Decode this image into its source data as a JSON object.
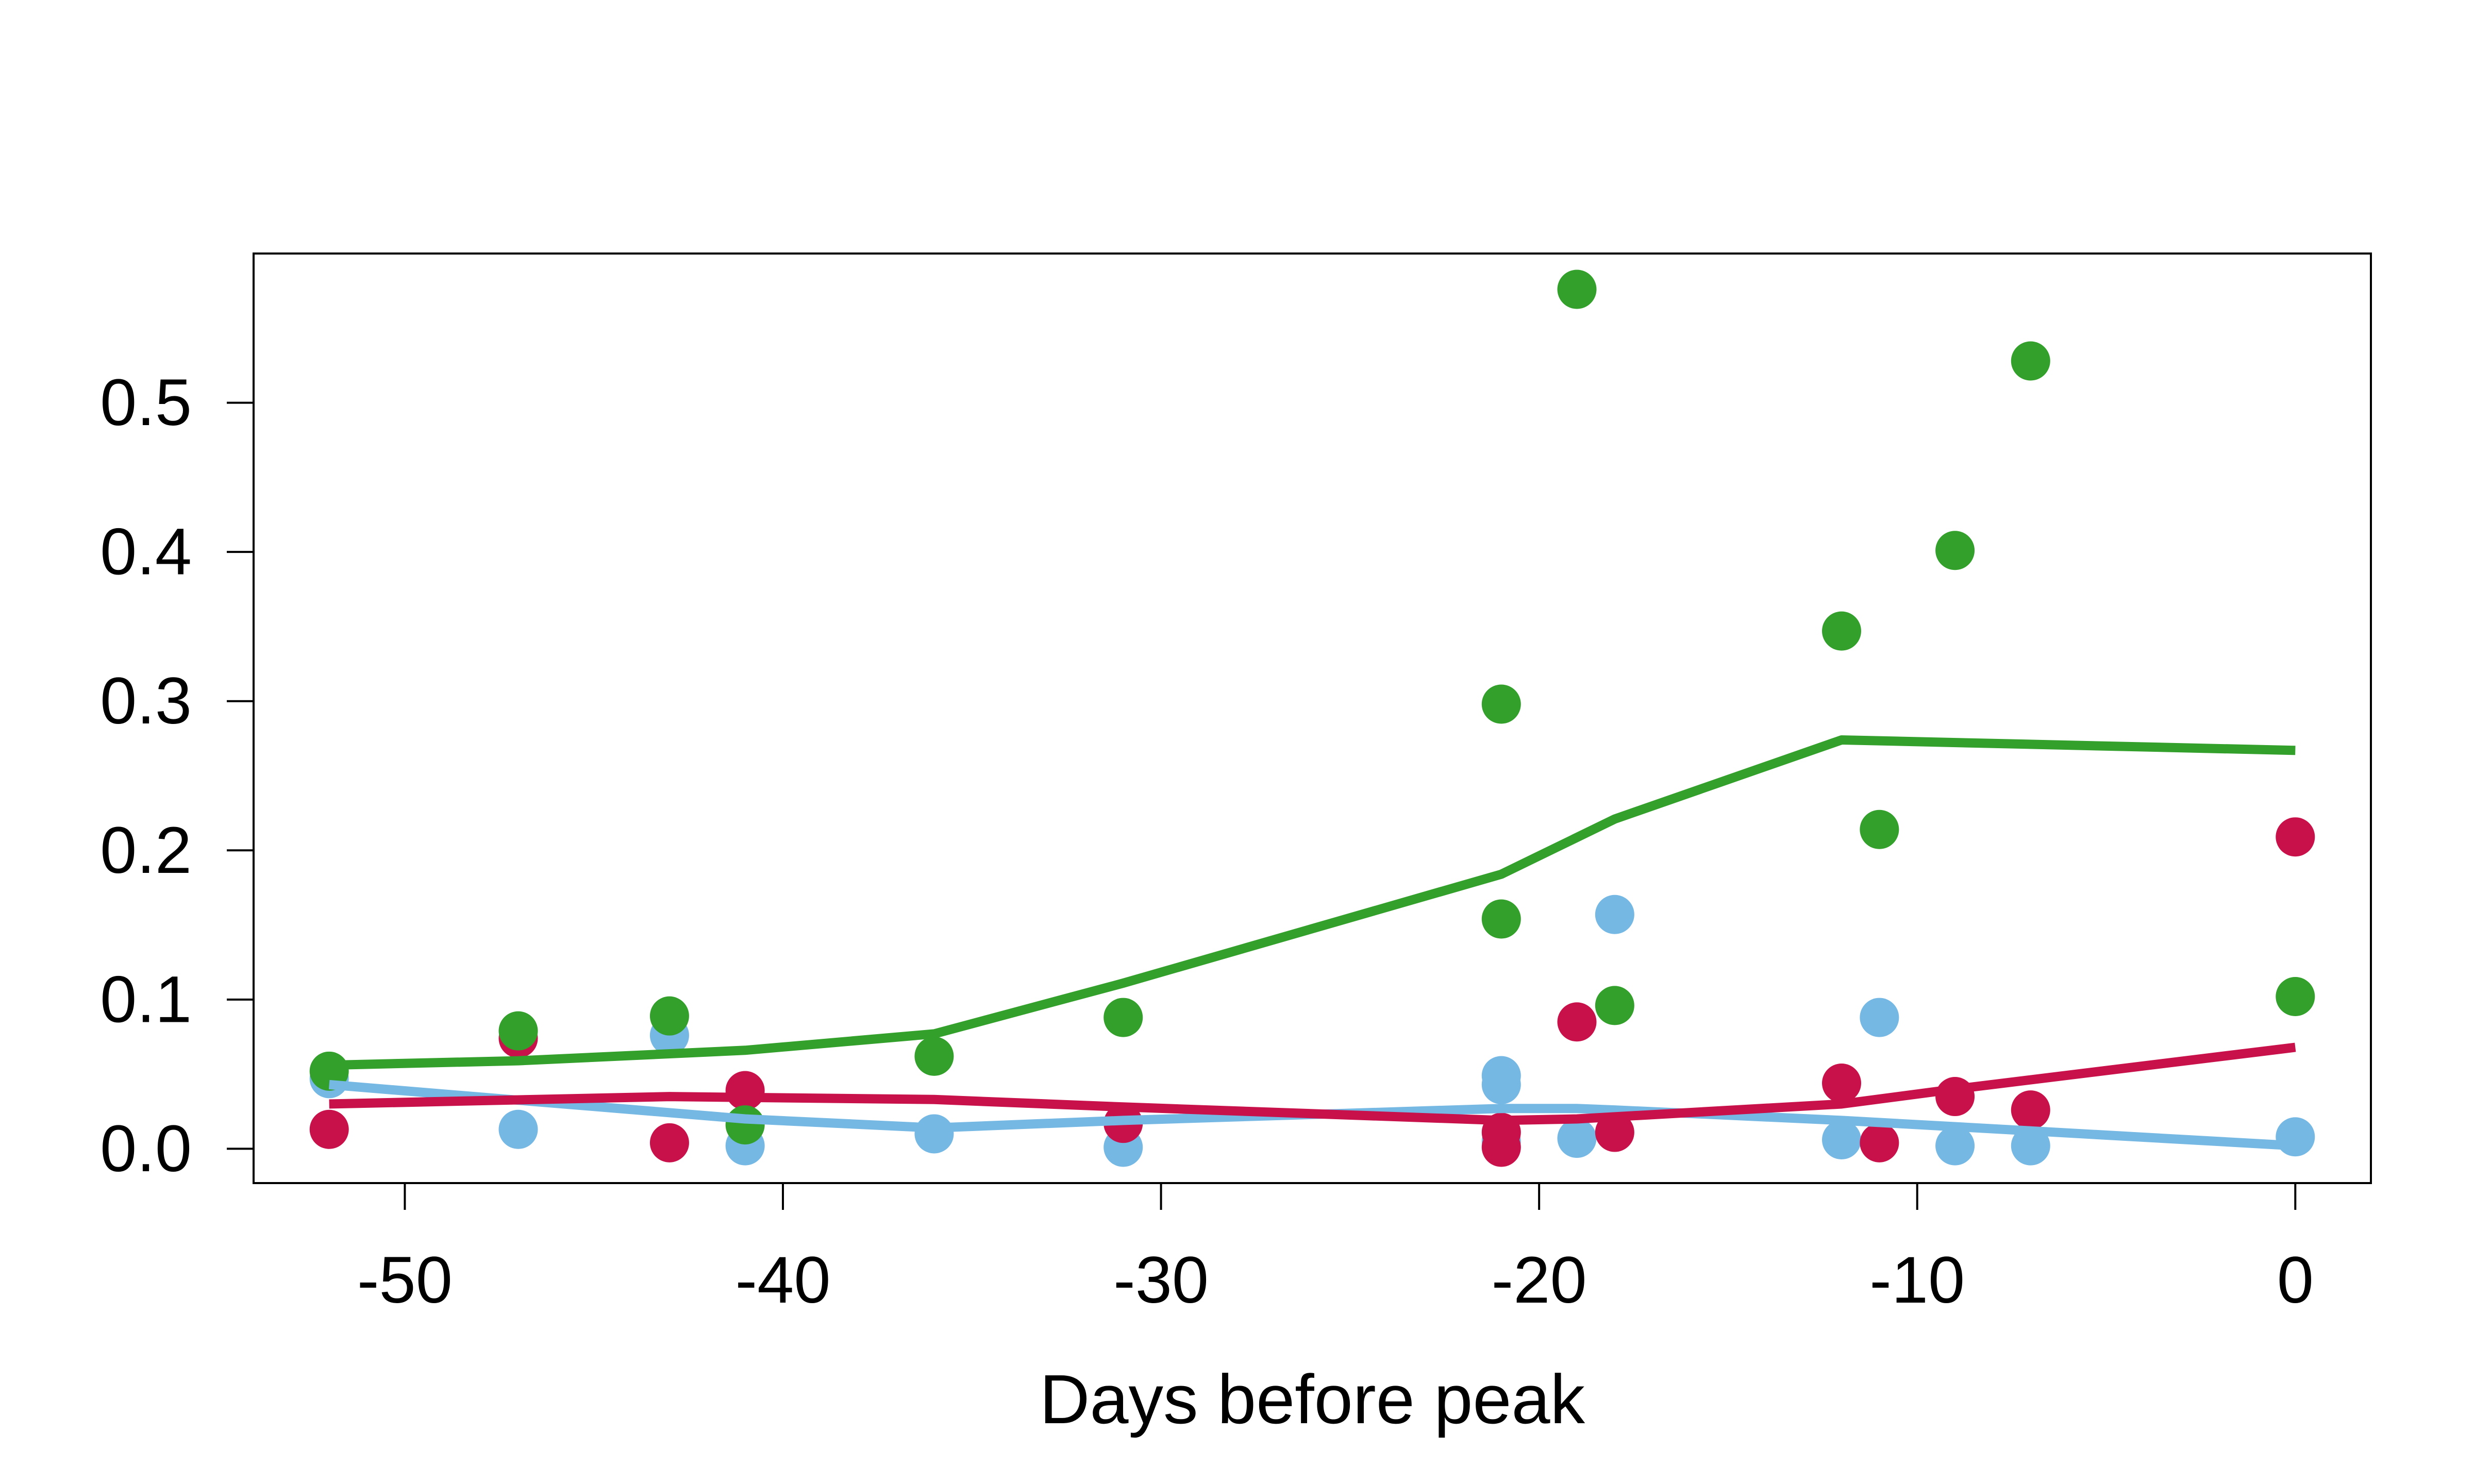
{
  "chart_data": {
    "type": "scatter",
    "xlabel": "Days before peak",
    "ylabel": "",
    "xlim": [
      -54,
      2
    ],
    "ylim": [
      -0.023,
      0.6
    ],
    "xticks": [
      -50,
      -40,
      -30,
      -20,
      -10,
      0
    ],
    "yticks": [
      0.0,
      0.1,
      0.2,
      0.3,
      0.4,
      0.5
    ],
    "xtick_labels": [
      "-50",
      "-40",
      "-30",
      "-20",
      "-10",
      "0"
    ],
    "ytick_labels": [
      "0.0",
      "0.1",
      "0.2",
      "0.3",
      "0.4",
      "0.5"
    ],
    "grid": false,
    "series": [
      {
        "color": "#75b8e4",
        "points": [
          {
            "x": -52,
            "y": 0.047
          },
          {
            "x": -47,
            "y": 0.013
          },
          {
            "x": -43,
            "y": 0.076
          },
          {
            "x": -41,
            "y": 0.002
          },
          {
            "x": -36,
            "y": 0.01
          },
          {
            "x": -31,
            "y": 0.001
          },
          {
            "x": -21,
            "y": 0.049
          },
          {
            "x": -21,
            "y": 0.043
          },
          {
            "x": -21,
            "y": 0.005
          },
          {
            "x": -19,
            "y": 0.007
          },
          {
            "x": -18,
            "y": 0.157
          },
          {
            "x": -12,
            "y": 0.006
          },
          {
            "x": -11,
            "y": 0.088
          },
          {
            "x": -9,
            "y": 0.002
          },
          {
            "x": -7,
            "y": 0.002
          },
          {
            "x": 0,
            "y": 0.008
          }
        ],
        "trend": [
          {
            "x": -52,
            "y": 0.043
          },
          {
            "x": -41,
            "y": 0.02
          },
          {
            "x": -36,
            "y": 0.014
          },
          {
            "x": -31,
            "y": 0.019
          },
          {
            "x": -21,
            "y": 0.027
          },
          {
            "x": -19,
            "y": 0.027
          },
          {
            "x": -18,
            "y": 0.026
          },
          {
            "x": -12,
            "y": 0.019
          },
          {
            "x": -7,
            "y": 0.012
          },
          {
            "x": 0,
            "y": 0.002
          }
        ]
      },
      {
        "color": "#c8104a",
        "points": [
          {
            "x": -52,
            "y": 0.013
          },
          {
            "x": -47,
            "y": 0.074
          },
          {
            "x": -43,
            "y": 0.004
          },
          {
            "x": -41,
            "y": 0.039
          },
          {
            "x": -31,
            "y": 0.017
          },
          {
            "x": -21,
            "y": 0.011
          },
          {
            "x": -21,
            "y": 0.001
          },
          {
            "x": -19,
            "y": 0.085
          },
          {
            "x": -18,
            "y": 0.011
          },
          {
            "x": -12,
            "y": 0.044
          },
          {
            "x": -11,
            "y": 0.004
          },
          {
            "x": -9,
            "y": 0.035
          },
          {
            "x": -7,
            "y": 0.026
          },
          {
            "x": 0,
            "y": 0.209
          }
        ],
        "trend": [
          {
            "x": -52,
            "y": 0.03
          },
          {
            "x": -43,
            "y": 0.035
          },
          {
            "x": -36,
            "y": 0.033
          },
          {
            "x": -31,
            "y": 0.028
          },
          {
            "x": -21,
            "y": 0.019
          },
          {
            "x": -19,
            "y": 0.02
          },
          {
            "x": -12,
            "y": 0.03
          },
          {
            "x": -9,
            "y": 0.04
          },
          {
            "x": 0,
            "y": 0.068
          }
        ]
      },
      {
        "color": "#33a02c",
        "points": [
          {
            "x": -52,
            "y": 0.052
          },
          {
            "x": -47,
            "y": 0.079
          },
          {
            "x": -43,
            "y": 0.089
          },
          {
            "x": -41,
            "y": 0.016
          },
          {
            "x": -36,
            "y": 0.062
          },
          {
            "x": -31,
            "y": 0.088
          },
          {
            "x": -21,
            "y": 0.298
          },
          {
            "x": -21,
            "y": 0.154
          },
          {
            "x": -19,
            "y": 0.576
          },
          {
            "x": -18,
            "y": 0.096
          },
          {
            "x": -12,
            "y": 0.347
          },
          {
            "x": -11,
            "y": 0.214
          },
          {
            "x": -9,
            "y": 0.401
          },
          {
            "x": -7,
            "y": 0.528
          },
          {
            "x": 0,
            "y": 0.102
          }
        ],
        "trend": [
          {
            "x": -52,
            "y": 0.056
          },
          {
            "x": -47,
            "y": 0.059
          },
          {
            "x": -41,
            "y": 0.066
          },
          {
            "x": -36,
            "y": 0.077
          },
          {
            "x": -31,
            "y": 0.111
          },
          {
            "x": -21,
            "y": 0.184
          },
          {
            "x": -18,
            "y": 0.221
          },
          {
            "x": -12,
            "y": 0.274
          },
          {
            "x": 0,
            "y": 0.267
          }
        ]
      }
    ]
  }
}
